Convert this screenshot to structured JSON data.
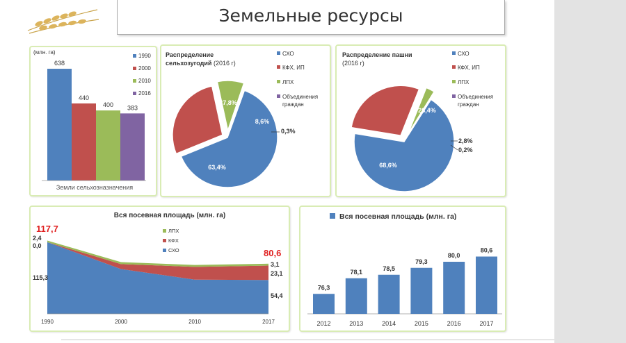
{
  "page_title": "Земельные ресурсы",
  "chart_data": [
    {
      "type": "bar",
      "unit_label": "(млн. га)",
      "categories": [
        "Земли сельхозназначения"
      ],
      "series": [
        {
          "name": "1990",
          "values": [
            638
          ],
          "color": "#4f81bd"
        },
        {
          "name": "2000",
          "values": [
            440
          ],
          "color": "#c0504d"
        },
        {
          "name": "2010",
          "values": [
            400
          ],
          "color": "#9bbb59"
        },
        {
          "name": "2016",
          "values": [
            383
          ],
          "color": "#8064a2"
        }
      ],
      "ylim": [
        0,
        650
      ],
      "legend": "right",
      "grid": false
    },
    {
      "type": "pie",
      "title": "Распределение сельхозугодий (2016 г)",
      "labels": [
        "СХО",
        "КФХ, ИП",
        "ЛПХ",
        "Объединения граждан"
      ],
      "values": [
        63.4,
        27.8,
        8.6,
        0.3
      ],
      "value_labels": [
        "63,4%",
        "27,8%",
        "8,6%",
        "0,3%"
      ],
      "colors": [
        "#4f81bd",
        "#c0504d",
        "#9bbb59",
        "#8064a2"
      ],
      "legend": "right"
    },
    {
      "type": "pie",
      "title": "Распределение пашни (2016 г)",
      "labels": [
        "СХО",
        "КФХ, ИП",
        "ЛПХ",
        "Объединения граждан"
      ],
      "values": [
        68.6,
        28.4,
        2.8,
        0.2
      ],
      "value_labels": [
        "68,6%",
        "28,4%",
        "2,8%",
        "0,2%"
      ],
      "colors": [
        "#4f81bd",
        "#c0504d",
        "#9bbb59",
        "#8064a2"
      ],
      "legend": "right"
    },
    {
      "type": "area",
      "title": "Вся посевная площадь (млн. га)",
      "x": [
        "1990",
        "2000",
        "2010",
        "2017"
      ],
      "series": [
        {
          "name": "СХО",
          "values": [
            115.3,
            72.0,
            55.0,
            54.4
          ],
          "color": "#4f81bd"
        },
        {
          "name": "КФХ",
          "values": [
            0.0,
            8.0,
            20.5,
            23.1
          ],
          "color": "#c0504d"
        },
        {
          "name": "ЛПХ",
          "values": [
            2.4,
            3.2,
            3.0,
            3.1
          ],
          "color": "#9bbb59"
        }
      ],
      "ylim": [
        0,
        125
      ],
      "annotations": {
        "start_total": "117,7",
        "end_total": "80,6",
        "start_lph": "2,4",
        "start_kfh": "0,0",
        "start_sho": "115,3",
        "end_lph": "3,1",
        "end_kfh": "23,1",
        "end_sho": "54,4"
      },
      "legend": "center"
    },
    {
      "type": "bar",
      "title": "Вся посевная площадь (млн. га)",
      "categories": [
        "2012",
        "2013",
        "2014",
        "2015",
        "2016",
        "2017"
      ],
      "values": [
        76.3,
        78.1,
        78.5,
        79.3,
        80.0,
        80.6
      ],
      "value_labels": [
        "76,3",
        "78,1",
        "78,5",
        "79,3",
        "80,0",
        "80,6"
      ],
      "ylim": [
        74,
        82
      ],
      "color": "#4f81bd",
      "legend": "top"
    }
  ]
}
